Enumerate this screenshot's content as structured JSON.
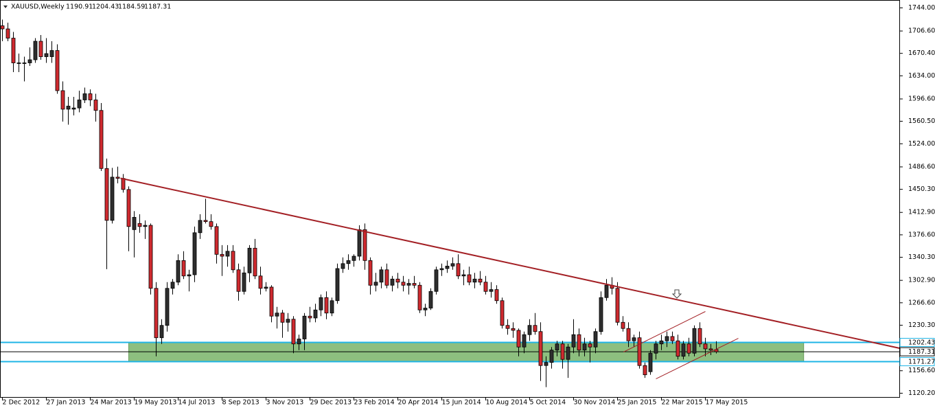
{
  "chart_data": {
    "type": "candlestick",
    "title": "XAUUSD,Weekly",
    "candles": [
      [
        1715,
        1725,
        1690,
        1710
      ],
      [
        1710,
        1720,
        1690,
        1695
      ],
      [
        1695,
        1705,
        1640,
        1655
      ],
      [
        1655,
        1670,
        1640,
        1655
      ],
      [
        1655,
        1665,
        1625,
        1655
      ],
      [
        1655,
        1680,
        1650,
        1660
      ],
      [
        1660,
        1695,
        1655,
        1690
      ],
      [
        1690,
        1700,
        1660,
        1665
      ],
      [
        1665,
        1695,
        1655,
        1670
      ],
      [
        1665,
        1690,
        1655,
        1675
      ],
      [
        1675,
        1685,
        1605,
        1610
      ],
      [
        1610,
        1625,
        1560,
        1580
      ],
      [
        1580,
        1600,
        1555,
        1585
      ],
      [
        1580,
        1600,
        1570,
        1582
      ],
      [
        1582,
        1610,
        1575,
        1595
      ],
      [
        1595,
        1615,
        1590,
        1605
      ],
      [
        1605,
        1612,
        1585,
        1595
      ],
      [
        1595,
        1605,
        1560,
        1578
      ],
      [
        1578,
        1590,
        1480,
        1484
      ],
      [
        1484,
        1500,
        1321,
        1400
      ],
      [
        1400,
        1485,
        1395,
        1470
      ],
      [
        1470,
        1487,
        1460,
        1468
      ],
      [
        1468,
        1475,
        1445,
        1450
      ],
      [
        1450,
        1455,
        1350,
        1390
      ],
      [
        1385,
        1415,
        1340,
        1405
      ],
      [
        1395,
        1410,
        1380,
        1390
      ],
      [
        1390,
        1400,
        1370,
        1392
      ],
      [
        1392,
        1395,
        1280,
        1290
      ],
      [
        1290,
        1300,
        1180,
        1210
      ],
      [
        1210,
        1240,
        1200,
        1230
      ],
      [
        1230,
        1300,
        1220,
        1290
      ],
      [
        1290,
        1305,
        1280,
        1300
      ],
      [
        1300,
        1345,
        1295,
        1335
      ],
      [
        1335,
        1350,
        1305,
        1310
      ],
      [
        1310,
        1320,
        1285,
        1312
      ],
      [
        1312,
        1390,
        1300,
        1380
      ],
      [
        1380,
        1410,
        1370,
        1400
      ],
      [
        1400,
        1435,
        1395,
        1398
      ],
      [
        1398,
        1410,
        1385,
        1390
      ],
      [
        1390,
        1395,
        1330,
        1345
      ],
      [
        1345,
        1360,
        1310,
        1342
      ],
      [
        1342,
        1360,
        1325,
        1350
      ],
      [
        1350,
        1360,
        1315,
        1320
      ],
      [
        1320,
        1330,
        1270,
        1285
      ],
      [
        1285,
        1325,
        1280,
        1315
      ],
      [
        1315,
        1360,
        1300,
        1355
      ],
      [
        1355,
        1370,
        1305,
        1310
      ],
      [
        1310,
        1325,
        1280,
        1290
      ],
      [
        1290,
        1300,
        1285,
        1292
      ],
      [
        1292,
        1295,
        1235,
        1245
      ],
      [
        1245,
        1260,
        1225,
        1250
      ],
      [
        1250,
        1255,
        1210,
        1235
      ],
      [
        1235,
        1250,
        1220,
        1240
      ],
      [
        1240,
        1245,
        1185,
        1200
      ],
      [
        1200,
        1215,
        1190,
        1208
      ],
      [
        1208,
        1250,
        1190,
        1245
      ],
      [
        1245,
        1260,
        1235,
        1242
      ],
      [
        1242,
        1265,
        1235,
        1255
      ],
      [
        1255,
        1280,
        1245,
        1275
      ],
      [
        1275,
        1285,
        1240,
        1250
      ],
      [
        1250,
        1275,
        1245,
        1270
      ],
      [
        1270,
        1330,
        1265,
        1322
      ],
      [
        1322,
        1340,
        1315,
        1330
      ],
      [
        1330,
        1345,
        1320,
        1335
      ],
      [
        1335,
        1345,
        1325,
        1342
      ],
      [
        1342,
        1392,
        1335,
        1385
      ],
      [
        1385,
        1395,
        1320,
        1335
      ],
      [
        1335,
        1340,
        1280,
        1295
      ],
      [
        1295,
        1315,
        1285,
        1300
      ],
      [
        1300,
        1325,
        1290,
        1320
      ],
      [
        1320,
        1330,
        1290,
        1295
      ],
      [
        1295,
        1310,
        1285,
        1305
      ],
      [
        1305,
        1315,
        1290,
        1300
      ],
      [
        1300,
        1310,
        1285,
        1295
      ],
      [
        1295,
        1305,
        1280,
        1298
      ],
      [
        1298,
        1310,
        1290,
        1295
      ],
      [
        1295,
        1300,
        1250,
        1255
      ],
      [
        1255,
        1265,
        1245,
        1258
      ],
      [
        1258,
        1290,
        1255,
        1285
      ],
      [
        1285,
        1325,
        1280,
        1320
      ],
      [
        1320,
        1330,
        1310,
        1322
      ],
      [
        1322,
        1335,
        1315,
        1326
      ],
      [
        1326,
        1340,
        1320,
        1330
      ],
      [
        1330,
        1345,
        1305,
        1310
      ],
      [
        1310,
        1320,
        1295,
        1312
      ],
      [
        1312,
        1325,
        1295,
        1300
      ],
      [
        1300,
        1315,
        1290,
        1305
      ],
      [
        1305,
        1318,
        1295,
        1300
      ],
      [
        1300,
        1310,
        1280,
        1285
      ],
      [
        1285,
        1300,
        1275,
        1288
      ],
      [
        1288,
        1295,
        1265,
        1270
      ],
      [
        1270,
        1275,
        1225,
        1230
      ],
      [
        1230,
        1240,
        1215,
        1225
      ],
      [
        1225,
        1235,
        1210,
        1222
      ],
      [
        1222,
        1225,
        1180,
        1195
      ],
      [
        1195,
        1220,
        1185,
        1215
      ],
      [
        1215,
        1240,
        1205,
        1230
      ],
      [
        1230,
        1250,
        1215,
        1220
      ],
      [
        1220,
        1235,
        1140,
        1165
      ],
      [
        1165,
        1180,
        1130,
        1170
      ],
      [
        1170,
        1195,
        1160,
        1190
      ],
      [
        1190,
        1205,
        1180,
        1200
      ],
      [
        1200,
        1205,
        1160,
        1175
      ],
      [
        1175,
        1200,
        1145,
        1195
      ],
      [
        1195,
        1240,
        1185,
        1215
      ],
      [
        1215,
        1225,
        1180,
        1190
      ],
      [
        1190,
        1210,
        1180,
        1200
      ],
      [
        1200,
        1205,
        1170,
        1195
      ],
      [
        1195,
        1225,
        1185,
        1220
      ],
      [
        1220,
        1285,
        1215,
        1275
      ],
      [
        1275,
        1305,
        1270,
        1295
      ],
      [
        1295,
        1308,
        1280,
        1290
      ],
      [
        1290,
        1300,
        1230,
        1235
      ],
      [
        1235,
        1245,
        1220,
        1225
      ],
      [
        1225,
        1235,
        1195,
        1205
      ],
      [
        1205,
        1215,
        1195,
        1210
      ],
      [
        1210,
        1220,
        1160,
        1165
      ],
      [
        1165,
        1170,
        1145,
        1150
      ],
      [
        1155,
        1190,
        1150,
        1185
      ],
      [
        1185,
        1205,
        1175,
        1200
      ],
      [
        1200,
        1215,
        1190,
        1205
      ],
      [
        1205,
        1220,
        1195,
        1212
      ],
      [
        1212,
        1220,
        1200,
        1205
      ],
      [
        1205,
        1215,
        1175,
        1180
      ],
      [
        1180,
        1205,
        1175,
        1200
      ],
      [
        1200,
        1210,
        1180,
        1185
      ],
      [
        1185,
        1230,
        1180,
        1225
      ],
      [
        1225,
        1235,
        1195,
        1200
      ],
      [
        1200,
        1210,
        1180,
        1192
      ],
      [
        1192,
        1200,
        1182,
        1190
      ],
      [
        1190.91,
        1204.43,
        1184.59,
        1187.31
      ]
    ],
    "xlim": [
      -0.375,
      163.375
    ],
    "xticks": [
      {
        "value": 0,
        "label": "2 Dec 2012"
      },
      {
        "value": 8,
        "label": "27 Jan 2013"
      },
      {
        "value": 16,
        "label": "24 Mar 2013"
      },
      {
        "value": 24,
        "label": "19 May 2013"
      },
      {
        "value": 32,
        "label": "14 Jul 2013"
      },
      {
        "value": 40,
        "label": "8 Sep 2013"
      },
      {
        "value": 48,
        "label": "3 Nov 2013"
      },
      {
        "value": 56,
        "label": "29 Dec 2013"
      },
      {
        "value": 64,
        "label": "23 Feb 2014"
      },
      {
        "value": 72,
        "label": "20 Apr 2014"
      },
      {
        "value": 80,
        "label": "15 Jun 2014"
      },
      {
        "value": 88,
        "label": "10 Aug 2014"
      },
      {
        "value": 96,
        "label": "5 Oct 2014"
      },
      {
        "value": 104,
        "label": "30 Nov 2014"
      },
      {
        "value": 112,
        "label": "25 Jan 2015"
      },
      {
        "value": 120,
        "label": "22 Mar 2015"
      },
      {
        "value": 128,
        "label": "17 May 2015"
      }
    ],
    "ylim": [
      1113.5,
      1756.2
    ],
    "yticks": [
      {
        "value": 1744,
        "label": "1744.00"
      },
      {
        "value": 1706.6,
        "label": "1706.60"
      },
      {
        "value": 1670.4,
        "label": "1670.40"
      },
      {
        "value": 1634,
        "label": "1634.00"
      },
      {
        "value": 1596.6,
        "label": "1596.60"
      },
      {
        "value": 1560.5,
        "label": "1560.50"
      },
      {
        "value": 1524,
        "label": "1524.00"
      },
      {
        "value": 1486.6,
        "label": "1486.60"
      },
      {
        "value": 1450.3,
        "label": "1450.30"
      },
      {
        "value": 1412.9,
        "label": "1412.90"
      },
      {
        "value": 1376.6,
        "label": "1376.60"
      },
      {
        "value": 1340.3,
        "label": "1340.30"
      },
      {
        "value": 1302.9,
        "label": "1302.90"
      },
      {
        "value": 1266.6,
        "label": "1266.60"
      },
      {
        "value": 1230.3,
        "label": "1230.30"
      },
      {
        "value": 1156.6,
        "label": "1156.60"
      },
      {
        "value": 1120.2,
        "label": "1120.20"
      }
    ],
    "up_color": "#2e2e2e",
    "down_color": "#cf2a2f",
    "zone": {
      "levels": [
        1202.43,
        1171.27
      ],
      "from": 23,
      "to": 145.9,
      "color": "#8dbf7f",
      "line_color": "#1fb4e6"
    },
    "trendlines": [
      {
        "from": [
          21.5,
          1468.2
        ],
        "to": [
          163.375,
          1193
        ],
        "color": "#a31f24"
      },
      {
        "from": [
          113.1,
          1186.9
        ],
        "to": [
          128,
          1252.5
        ],
        "color": "#a31f24"
      },
      {
        "from": [
          119,
          1143.5
        ],
        "to": [
          134,
          1209.1
        ],
        "color": "#a31f24"
      }
    ]
  }
}
